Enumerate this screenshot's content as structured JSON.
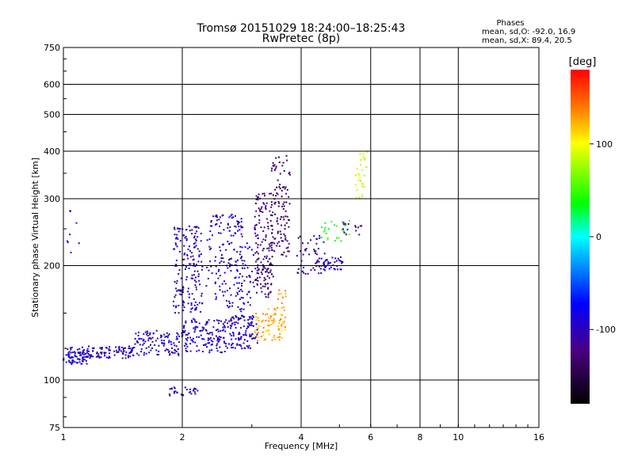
{
  "chart_data": {
    "type": "scatter",
    "title": "Tromsø 20151029 18:24:00–18:25:43",
    "subtitle": "RwPretec (8p)",
    "xlabel": "Frequency [MHz]",
    "ylabel": "Stationary phase Virtual Height [km]",
    "x_scale": "log",
    "y_scale": "log",
    "xlim": [
      1,
      16
    ],
    "ylim": [
      75,
      750
    ],
    "x_ticks": [
      1,
      2,
      4,
      6,
      8,
      10,
      16
    ],
    "y_ticks": [
      75,
      100,
      200,
      300,
      400,
      500,
      600,
      750
    ],
    "grid": true,
    "stats": {
      "heading": "Phases",
      "line_o": "mean, sd,O: -92.0, 16.9",
      "line_x": "mean, sd,X: 89.4, 20.5"
    },
    "colorbar": {
      "label": "[deg]",
      "ticks": [
        100,
        0,
        -100
      ],
      "range": [
        -180,
        180
      ]
    },
    "clusters": [
      {
        "x": [
          1.0,
          1.15
        ],
        "y": [
          110,
          122
        ],
        "phase": -95,
        "n": 80
      },
      {
        "x": [
          1.15,
          1.5
        ],
        "y": [
          114,
          123
        ],
        "phase": -98,
        "n": 90
      },
      {
        "x": [
          1.5,
          2.0
        ],
        "y": [
          116,
          135
        ],
        "phase": -95,
        "n": 110
      },
      {
        "x": [
          2.0,
          2.6
        ],
        "y": [
          118,
          145
        ],
        "phase": -92,
        "n": 140
      },
      {
        "x": [
          2.6,
          3.1
        ],
        "y": [
          121,
          148
        ],
        "phase": -95,
        "n": 110
      },
      {
        "x": [
          3.05,
          3.6
        ],
        "y": [
          127,
          150
        ],
        "phase": 125,
        "n": 70
      },
      {
        "x": [
          3.3,
          3.7
        ],
        "y": [
          135,
          175
        ],
        "phase": 128,
        "n": 30
      },
      {
        "x": [
          1.9,
          2.25
        ],
        "y": [
          150,
          255
        ],
        "phase": -100,
        "n": 170
      },
      {
        "x": [
          2.3,
          2.85
        ],
        "y": [
          155,
          275
        ],
        "phase": -95,
        "n": 150
      },
      {
        "x": [
          2.7,
          3.05
        ],
        "y": [
          140,
          230
        ],
        "phase": -85,
        "n": 60
      },
      {
        "x": [
          3.05,
          3.4
        ],
        "y": [
          165,
          310
        ],
        "phase": -125,
        "n": 160
      },
      {
        "x": [
          3.35,
          3.75
        ],
        "y": [
          210,
          390
        ],
        "phase": -135,
        "n": 110
      },
      {
        "x": [
          3.9,
          4.6
        ],
        "y": [
          190,
          240
        ],
        "phase": -115,
        "n": 50
      },
      {
        "x": [
          4.4,
          5.1
        ],
        "y": [
          195,
          212
        ],
        "phase": -92,
        "n": 45
      },
      {
        "x": [
          4.5,
          5.3
        ],
        "y": [
          230,
          265
        ],
        "phase": 40,
        "n": 25
      },
      {
        "x": [
          5.1,
          5.7
        ],
        "y": [
          240,
          260
        ],
        "phase": -110,
        "n": 15
      },
      {
        "x": [
          5.5,
          5.9
        ],
        "y": [
          300,
          400
        ],
        "phase": 95,
        "n": 30
      },
      {
        "x": [
          1.85,
          2.2
        ],
        "y": [
          91,
          96
        ],
        "phase": -100,
        "n": 30
      },
      {
        "x": [
          1.02,
          1.1
        ],
        "y": [
          210,
          280
        ],
        "phase": -80,
        "n": 8
      }
    ]
  }
}
